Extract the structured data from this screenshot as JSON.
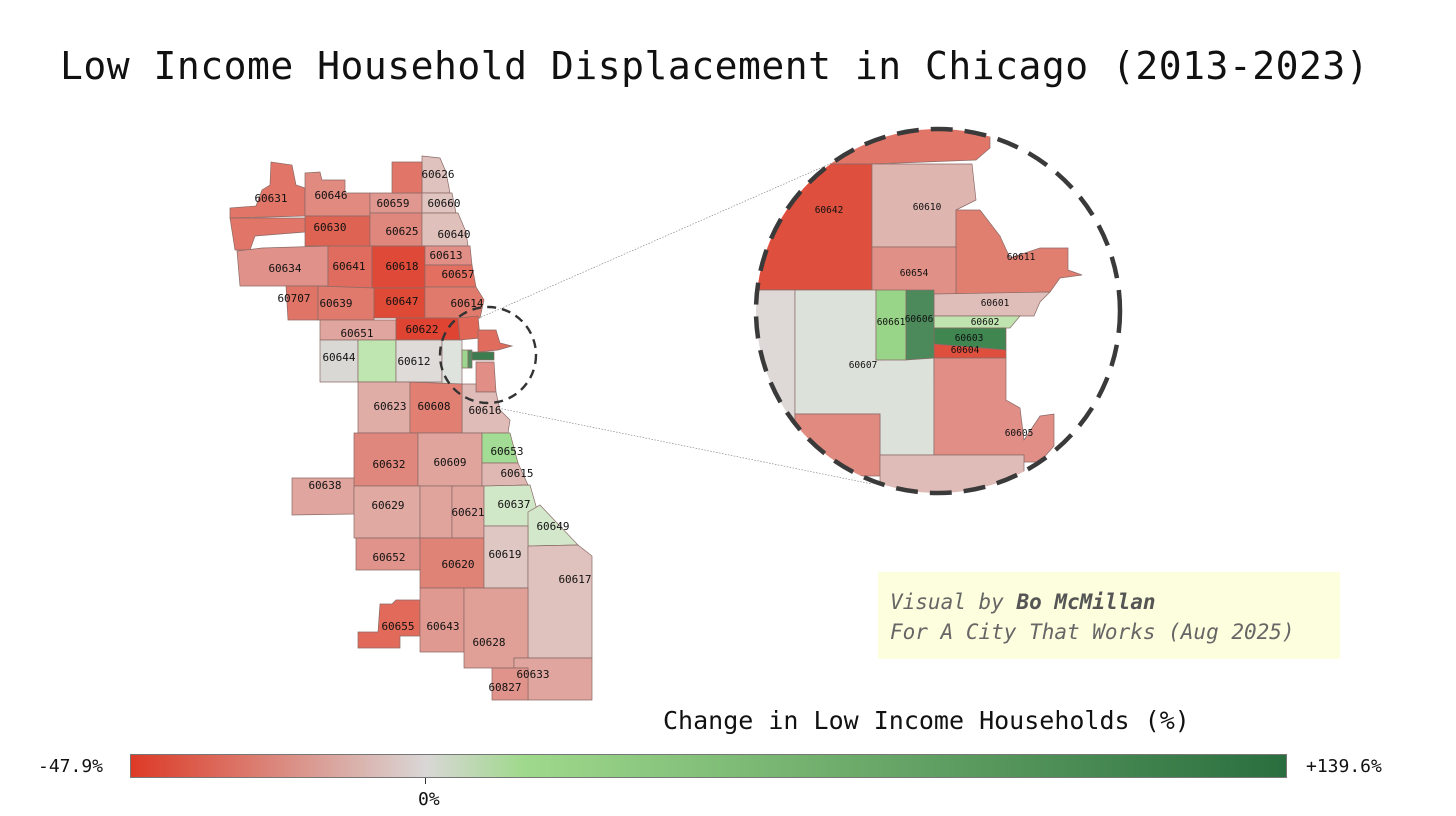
{
  "title": "Low Income Household Displacement in Chicago (2013-2023)",
  "credit": {
    "line1_prefix": "Visual by ",
    "author": "Bo McMillan",
    "line2": "For A City That Works (Aug 2025)"
  },
  "legend": {
    "title": "Change in Low Income Households (%)",
    "min_label": "-47.9%",
    "max_label": "+139.6%",
    "zero_label": "0%",
    "colors": [
      "#dd3a26",
      "#d9d7d6",
      "#9fd98c",
      "#2a6e3f"
    ]
  },
  "zip_labels": {
    "z60631": "60631",
    "z60646": "60646",
    "z60626": "60626",
    "z60659": "60659",
    "z60660": "60660",
    "z60630": "60630",
    "z60625": "60625",
    "z60640": "60640",
    "z60634": "60634",
    "z60641": "60641",
    "z60618": "60618",
    "z60613": "60613",
    "z60657": "60657",
    "z60707": "60707",
    "z60639": "60639",
    "z60647": "60647",
    "z60614": "60614",
    "z60651": "60651",
    "z60622": "60622",
    "z60644": "60644",
    "z60612": "60612",
    "z60623": "60623",
    "z60608": "60608",
    "z60616": "60616",
    "z60653": "60653",
    "z60632": "60632",
    "z60609": "60609",
    "z60615": "60615",
    "z60638": "60638",
    "z60629": "60629",
    "z60621": "60621",
    "z60637": "60637",
    "z60649": "60649",
    "z60652": "60652",
    "z60620": "60620",
    "z60619": "60619",
    "z60617": "60617",
    "z60655": "60655",
    "z60643": "60643",
    "z60628": "60628",
    "z60633": "60633",
    "z60827": "60827"
  },
  "inset_labels": {
    "z60642": "60642",
    "z60610": "60610",
    "z60611": "60611",
    "z60654": "60654",
    "z60601": "60601",
    "z60661": "60661",
    "z60606": "60606",
    "z60602": "60602",
    "z60603": "60603",
    "z60604": "60604",
    "z60607": "60607",
    "z60605": "60605"
  }
}
